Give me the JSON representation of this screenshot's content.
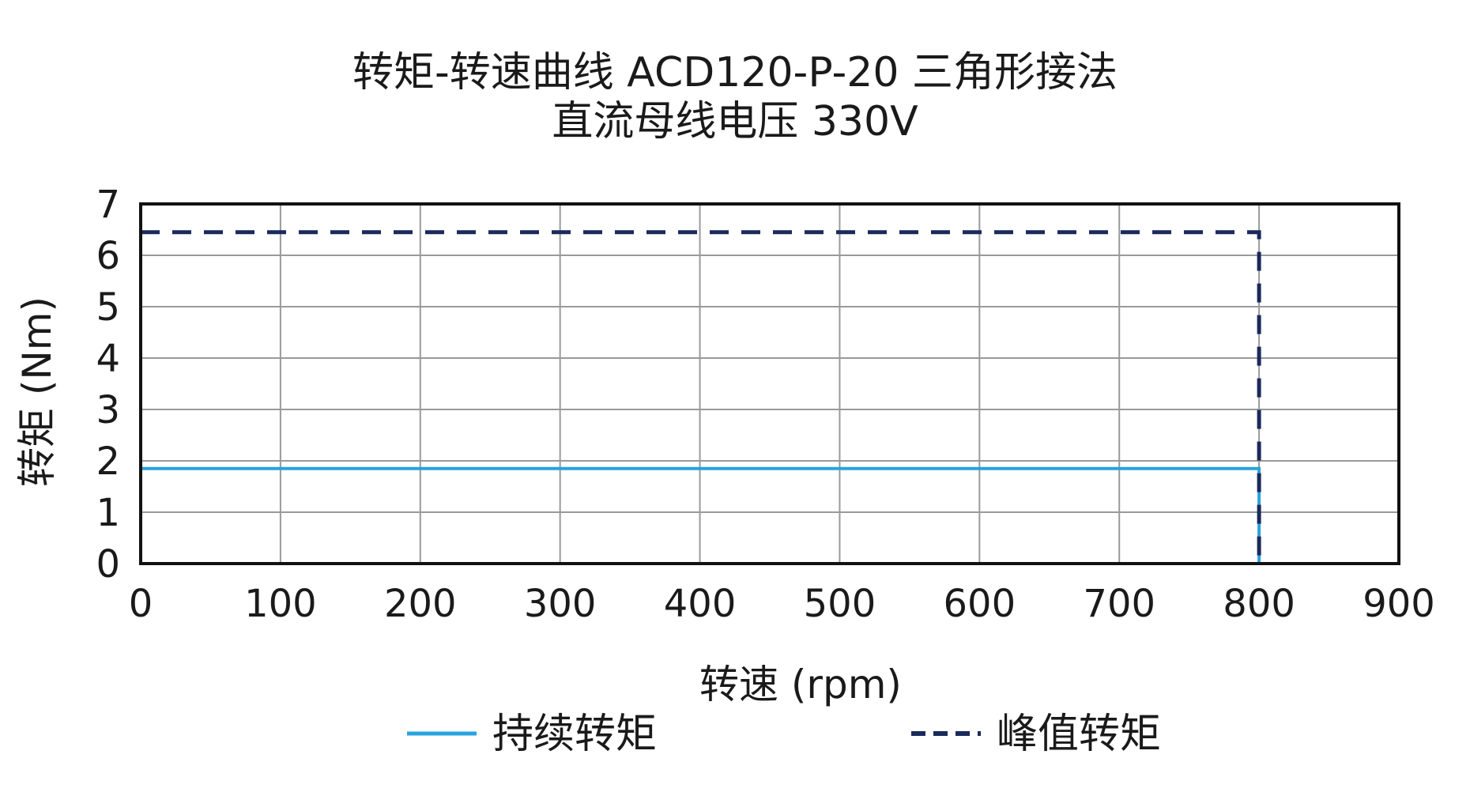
{
  "chart_data": {
    "type": "line",
    "title": "转矩-转速曲线 ACD120-P-20 三角形接法",
    "subtitle": "直流母线电压 330V",
    "xlabel": "转速 (rpm)",
    "ylabel": "转矩 (Nm)",
    "xlim": [
      0,
      900
    ],
    "ylim": [
      0,
      7
    ],
    "xticks": [
      0,
      100,
      200,
      300,
      400,
      500,
      600,
      700,
      800,
      900
    ],
    "yticks": [
      0,
      1,
      2,
      3,
      4,
      5,
      6,
      7
    ],
    "grid": true,
    "legend_position": "bottom",
    "series": [
      {
        "name": "持续转矩",
        "color": "#29a3dc",
        "style": "solid",
        "x": [
          0,
          800,
          800
        ],
        "y": [
          1.85,
          1.85,
          0
        ]
      },
      {
        "name": "峰值转矩",
        "color": "#1b2a5c",
        "style": "dashed",
        "x": [
          0,
          800,
          800
        ],
        "y": [
          6.45,
          6.45,
          0
        ]
      }
    ]
  }
}
